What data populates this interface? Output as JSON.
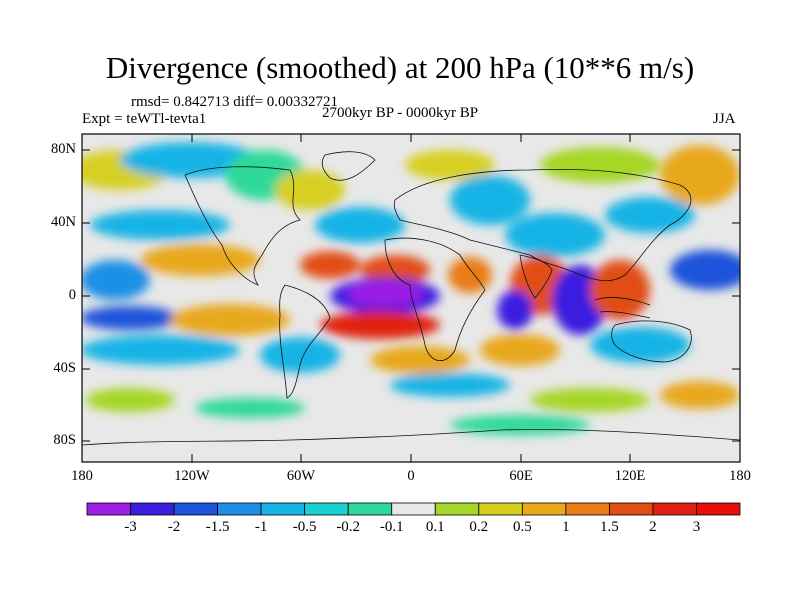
{
  "title": "Divergence (smoothed) at 200 hPa (10**6 m/s)",
  "stats": {
    "rmsd_label": "rmsd= 0.842713 diff= 0.00332721"
  },
  "experiment": "Expt = teWTl-tevta1",
  "period": "2700kyr BP - 0000kyr BP",
  "season": "JJA",
  "axes": {
    "lat_ticks": [
      "80N",
      "40N",
      "0",
      "40S",
      "80S"
    ],
    "lon_ticks": [
      "180",
      "120W",
      "60W",
      "0",
      "60E",
      "120E",
      "180"
    ]
  },
  "colorbar": {
    "labels": [
      "-3",
      "-2",
      "-1.5",
      "-1",
      "-0.5",
      "-0.2",
      "-0.1",
      "0.1",
      "0.2",
      "0.5",
      "1",
      "1.5",
      "2",
      "3"
    ],
    "colors": [
      "#9d1fe6",
      "#3b1fe0",
      "#1d52da",
      "#1f8fe6",
      "#19b4e6",
      "#18d1d1",
      "#2dd99a",
      "#e8e8e8",
      "#a6d628",
      "#d7cf20",
      "#e8a81a",
      "#ea7c16",
      "#e24d12",
      "#e02010",
      "#e80e0e"
    ]
  }
}
